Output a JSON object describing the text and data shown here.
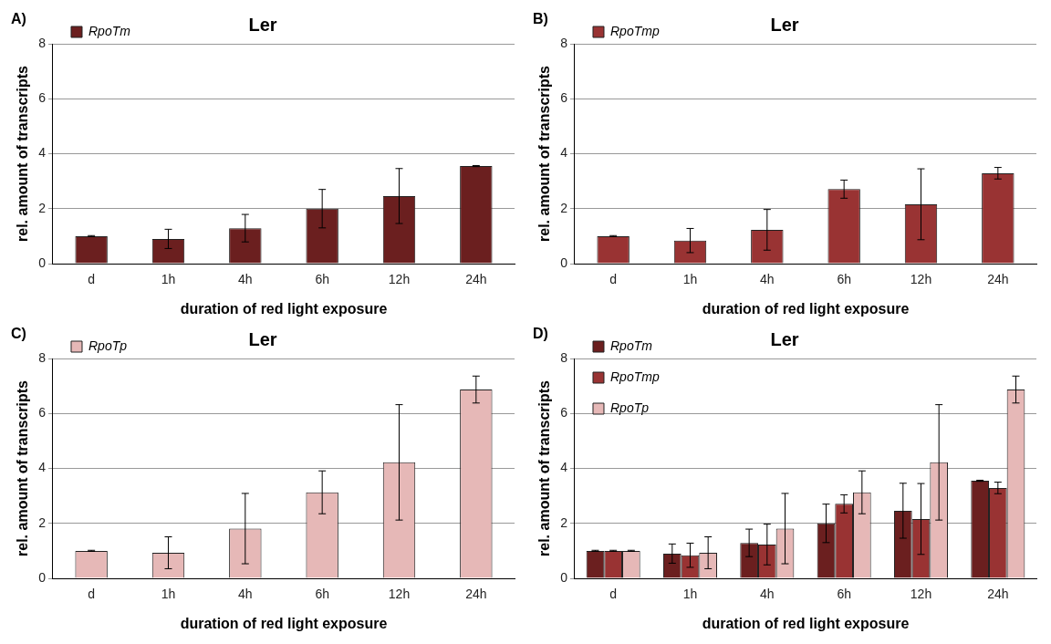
{
  "chart_data": [
    {
      "type": "bar",
      "title": "Ler",
      "annotations": [
        "A)"
      ],
      "xlabel": "duration of red light exposure",
      "ylabel": "rel. amount of transcripts",
      "categories": [
        "d",
        "1h",
        "4h",
        "6h",
        "12h",
        "24h"
      ],
      "ylim": [
        0,
        8
      ],
      "yticks": [
        0,
        2,
        4,
        6,
        8
      ],
      "grid": "y",
      "legend": "top left",
      "series": [
        {
          "name": "RpoTm",
          "color": "#6b1f1f",
          "values": [
            1.0,
            0.9,
            1.29,
            2.0,
            2.46,
            3.55
          ],
          "errors": [
            0.02,
            0.35,
            0.5,
            0.7,
            1.0,
            0.02
          ]
        }
      ]
    },
    {
      "type": "bar",
      "title": "Ler",
      "annotations": [
        "B)"
      ],
      "xlabel": "duration of red light exposure",
      "ylabel": "rel. amount of transcripts",
      "categories": [
        "d",
        "1h",
        "4h",
        "6h",
        "12h",
        "24h"
      ],
      "ylim": [
        0,
        8
      ],
      "yticks": [
        0,
        2,
        4,
        6,
        8
      ],
      "grid": "y",
      "legend": "top left",
      "series": [
        {
          "name": "RpoTmp",
          "color": "#993333",
          "values": [
            1.0,
            0.84,
            1.23,
            2.71,
            2.16,
            3.29
          ],
          "errors": [
            0.02,
            0.44,
            0.74,
            0.33,
            1.29,
            0.21
          ]
        }
      ]
    },
    {
      "type": "bar",
      "title": "Ler",
      "annotations": [
        "C)"
      ],
      "xlabel": "duration of red light exposure",
      "ylabel": "rel. amount of transcripts",
      "categories": [
        "d",
        "1h",
        "4h",
        "6h",
        "12h",
        "24h"
      ],
      "ylim": [
        0,
        8
      ],
      "yticks": [
        0,
        2,
        4,
        6,
        8
      ],
      "grid": "y",
      "legend": "top left",
      "series": [
        {
          "name": "RpoTp",
          "color": "#e6b8b7",
          "values": [
            1.0,
            0.93,
            1.81,
            3.13,
            4.22,
            6.87
          ],
          "errors": [
            0.02,
            0.58,
            1.28,
            0.78,
            2.1,
            0.49
          ]
        }
      ]
    },
    {
      "type": "bar",
      "title": "Ler",
      "annotations": [
        "D)"
      ],
      "xlabel": "duration of red light exposure",
      "ylabel": "rel. amount of transcripts",
      "categories": [
        "d",
        "1h",
        "4h",
        "6h",
        "12h",
        "24h"
      ],
      "ylim": [
        0,
        8
      ],
      "yticks": [
        0,
        2,
        4,
        6,
        8
      ],
      "grid": "y",
      "legend": "top left",
      "series": [
        {
          "name": "RpoTm",
          "color": "#6b1f1f",
          "values": [
            1.0,
            0.9,
            1.29,
            2.0,
            2.46,
            3.55
          ],
          "errors": [
            0.02,
            0.35,
            0.5,
            0.7,
            1.0,
            0.02
          ]
        },
        {
          "name": "RpoTmp",
          "color": "#993333",
          "values": [
            1.0,
            0.84,
            1.23,
            2.71,
            2.16,
            3.29
          ],
          "errors": [
            0.02,
            0.44,
            0.74,
            0.33,
            1.29,
            0.21
          ]
        },
        {
          "name": "RpoTp",
          "color": "#e6b8b7",
          "values": [
            1.0,
            0.93,
            1.81,
            3.13,
            4.22,
            6.87
          ],
          "errors": [
            0.02,
            0.58,
            1.28,
            0.78,
            2.1,
            0.49
          ]
        }
      ]
    }
  ]
}
